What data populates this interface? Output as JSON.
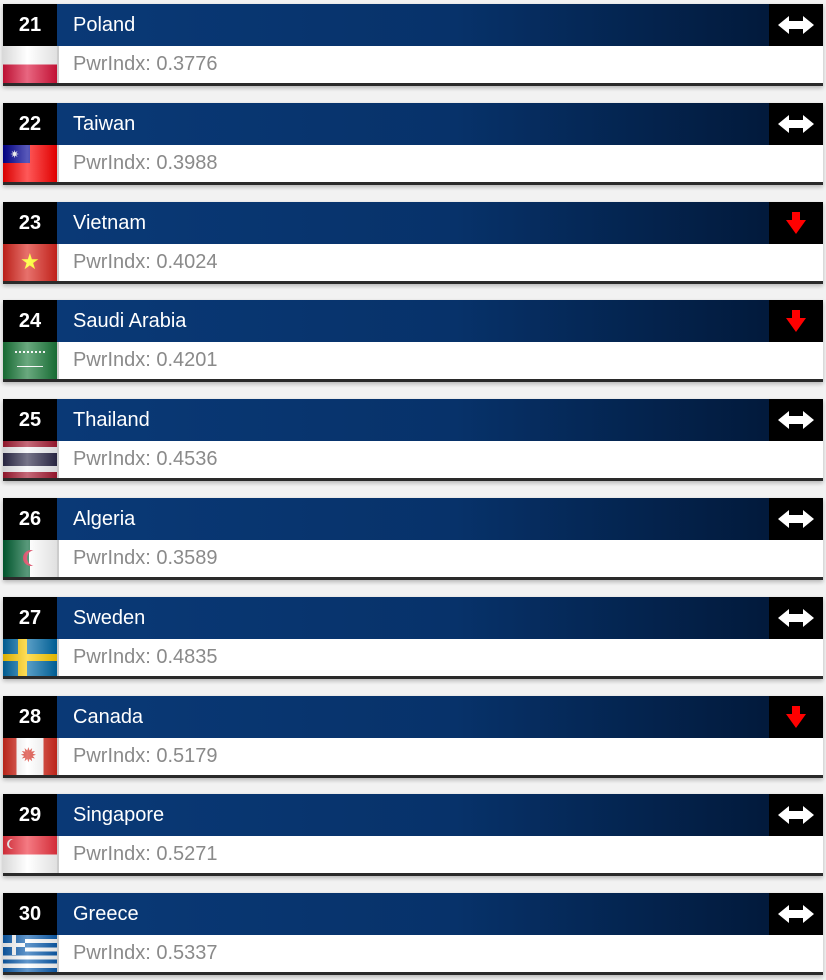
{
  "index_label": "PwrIndx:",
  "colors": {
    "header": "#0a3a78",
    "trend_down": "#ff0000",
    "trend_same": "#ffffff"
  },
  "rows": [
    {
      "rank": "21",
      "country": "Poland",
      "index": "0.3776",
      "trend": "unchanged",
      "trend_icon": "left-right-arrow-icon",
      "flag": "poland"
    },
    {
      "rank": "22",
      "country": "Taiwan",
      "index": "0.3988",
      "trend": "unchanged",
      "trend_icon": "left-right-arrow-icon",
      "flag": "taiwan"
    },
    {
      "rank": "23",
      "country": "Vietnam",
      "index": "0.4024",
      "trend": "down",
      "trend_icon": "down-arrow-icon",
      "flag": "vietnam"
    },
    {
      "rank": "24",
      "country": "Saudi Arabia",
      "index": "0.4201",
      "trend": "down",
      "trend_icon": "down-arrow-icon",
      "flag": "saudi-arabia"
    },
    {
      "rank": "25",
      "country": "Thailand",
      "index": "0.4536",
      "trend": "unchanged",
      "trend_icon": "left-right-arrow-icon",
      "flag": "thailand"
    },
    {
      "rank": "26",
      "country": "Algeria",
      "index": "0.3589",
      "trend": "unchanged",
      "trend_icon": "left-right-arrow-icon",
      "flag": "algeria"
    },
    {
      "rank": "27",
      "country": "Sweden",
      "index": "0.4835",
      "trend": "unchanged",
      "trend_icon": "left-right-arrow-icon",
      "flag": "sweden"
    },
    {
      "rank": "28",
      "country": "Canada",
      "index": "0.5179",
      "trend": "down",
      "trend_icon": "down-arrow-icon",
      "flag": "canada"
    },
    {
      "rank": "29",
      "country": "Singapore",
      "index": "0.5271",
      "trend": "unchanged",
      "trend_icon": "left-right-arrow-icon",
      "flag": "singapore"
    },
    {
      "rank": "30",
      "country": "Greece",
      "index": "0.5337",
      "trend": "unchanged",
      "trend_icon": "left-right-arrow-icon",
      "flag": "greece"
    }
  ]
}
